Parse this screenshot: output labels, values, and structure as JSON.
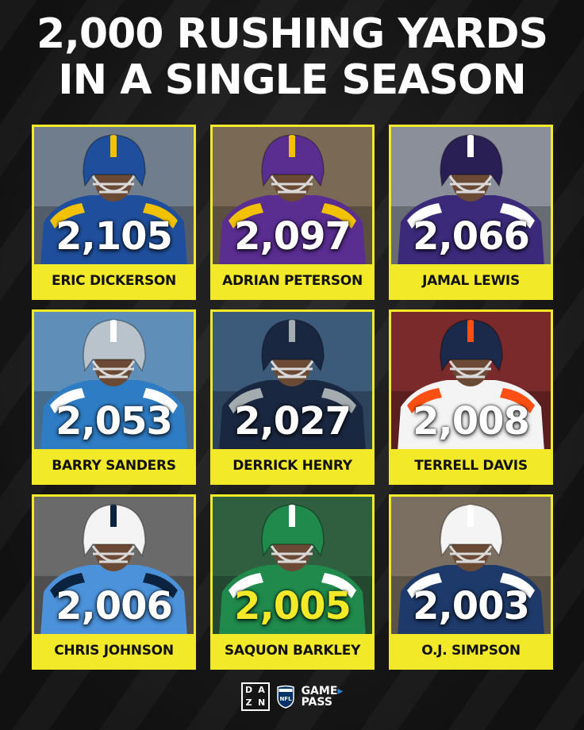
{
  "title": {
    "line1": "2,000 RUSHING YARDS",
    "line2": "IN A SINGLE SEASON"
  },
  "accent_color": "#f2e929",
  "players": [
    {
      "name": "ERIC DICKERSON",
      "yards": "2,105",
      "jersey": "#1f4f9c",
      "trim": "#f2c200",
      "helmet": "#1f4f9c",
      "bg": "#6f7d8c"
    },
    {
      "name": "ADRIAN PETERSON",
      "yards": "2,097",
      "jersey": "#5a2d91",
      "trim": "#f2c200",
      "helmet": "#5a2d91",
      "bg": "#7a6a55"
    },
    {
      "name": "JAMAL LEWIS",
      "yards": "2,066",
      "jersey": "#3b2a7a",
      "trim": "#ffffff",
      "helmet": "#2a1f55",
      "bg": "#8a8f99"
    },
    {
      "name": "BARRY SANDERS",
      "yards": "2,053",
      "jersey": "#2e7cc4",
      "trim": "#ffffff",
      "helmet": "#b9c3cc",
      "bg": "#5f8fb8"
    },
    {
      "name": "DERRICK HENRY",
      "yards": "2,027",
      "jersey": "#1a2740",
      "trim": "#a5acaf",
      "helmet": "#1a2740",
      "bg": "#3c5a7a"
    },
    {
      "name": "TERRELL DAVIS",
      "yards": "2,008",
      "jersey": "#f4f4f4",
      "trim": "#fb4f14",
      "helmet": "#1b2a4a",
      "bg": "#7a2a2a"
    },
    {
      "name": "CHRIS JOHNSON",
      "yards": "2,006",
      "jersey": "#4b92db",
      "trim": "#0c2340",
      "helmet": "#f4f4f4",
      "bg": "#6a6a6a"
    },
    {
      "name": "SAQUON BARKLEY",
      "yards": "2,005",
      "jersey": "#1f8a4c",
      "trim": "#ffffff",
      "helmet": "#1f8a4c",
      "bg": "#2f5f3f",
      "highlight": true
    },
    {
      "name": "O.J. SIMPSON",
      "yards": "2,003",
      "jersey": "#1d3a6a",
      "trim": "#ffffff",
      "helmet": "#f4f4f4",
      "bg": "#7a6f60"
    }
  ],
  "footer": {
    "dazn_letters": [
      "DA",
      "ZN"
    ],
    "nfl_label": "NFL",
    "gamepass_line1": "GAME",
    "gamepass_line2": "PASS"
  }
}
